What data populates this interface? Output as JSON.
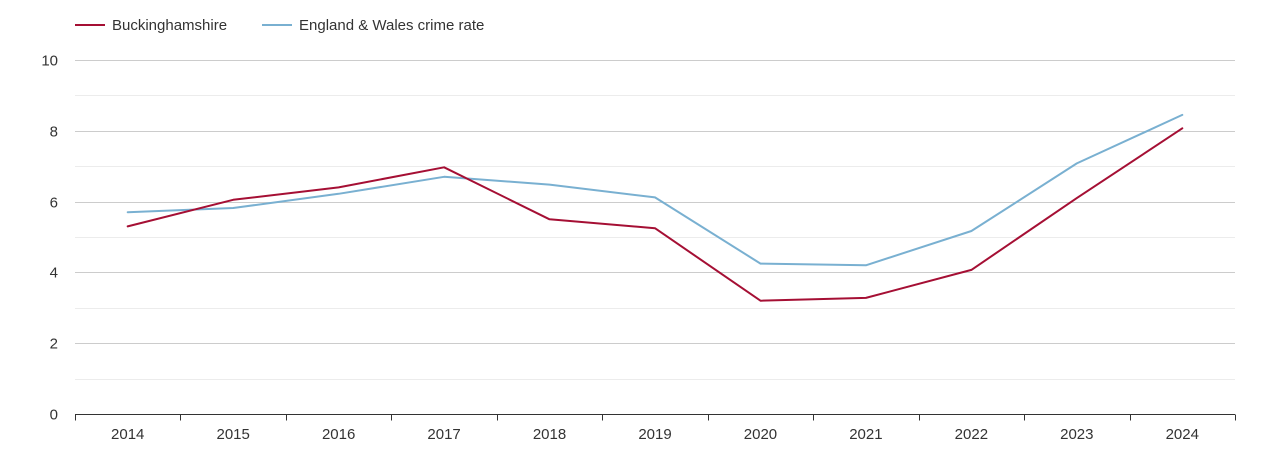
{
  "chart_data": {
    "type": "line",
    "title": "",
    "xlabel": "",
    "ylabel": "",
    "categories": [
      "2014",
      "2015",
      "2016",
      "2017",
      "2018",
      "2019",
      "2020",
      "2021",
      "2022",
      "2023",
      "2024"
    ],
    "ylim": [
      0,
      10
    ],
    "yticks": [
      "0",
      "2",
      "4",
      "6",
      "8",
      "10"
    ],
    "grid": true,
    "legend_position": "top-left",
    "series": [
      {
        "name": "Buckinghamshire",
        "color": "#a50f34",
        "values": [
          5.3,
          6.05,
          6.4,
          6.97,
          5.5,
          5.25,
          3.2,
          3.28,
          4.07,
          6.1,
          8.07
        ]
      },
      {
        "name": "England & Wales crime rate",
        "color": "#79b0d1",
        "values": [
          5.7,
          5.82,
          6.22,
          6.7,
          6.48,
          6.12,
          4.25,
          4.2,
          5.17,
          7.08,
          8.45
        ]
      }
    ]
  }
}
